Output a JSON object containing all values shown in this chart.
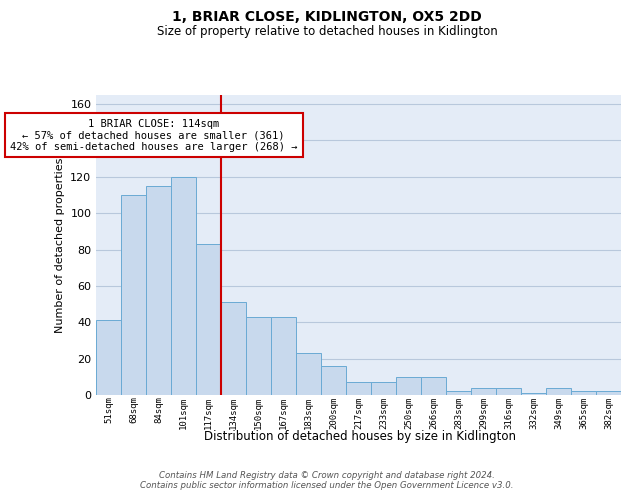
{
  "title": "1, BRIAR CLOSE, KIDLINGTON, OX5 2DD",
  "subtitle": "Size of property relative to detached houses in Kidlington",
  "xlabel": "Distribution of detached houses by size in Kidlington",
  "ylabel": "Number of detached properties",
  "categories": [
    "51sqm",
    "68sqm",
    "84sqm",
    "101sqm",
    "117sqm",
    "134sqm",
    "150sqm",
    "167sqm",
    "183sqm",
    "200sqm",
    "217sqm",
    "233sqm",
    "250sqm",
    "266sqm",
    "283sqm",
    "299sqm",
    "316sqm",
    "332sqm",
    "349sqm",
    "365sqm",
    "382sqm"
  ],
  "values": [
    41,
    110,
    115,
    120,
    83,
    51,
    43,
    43,
    23,
    16,
    7,
    7,
    10,
    10,
    2,
    4,
    4,
    1,
    4,
    2,
    2
  ],
  "bar_color": "#c8d9ed",
  "bar_edge_color": "#6aaad4",
  "grid_color": "#b8c8dc",
  "background_color": "#e4ecf7",
  "annotation_text": "1 BRIAR CLOSE: 114sqm\n← 57% of detached houses are smaller (361)\n42% of semi-detached houses are larger (268) →",
  "vline_position": 4.5,
  "vline_color": "#cc0000",
  "footer": "Contains HM Land Registry data © Crown copyright and database right 2024.\nContains public sector information licensed under the Open Government Licence v3.0.",
  "ylim": [
    0,
    165
  ],
  "annotation_box_color": "#ffffff",
  "annotation_box_edge_color": "#cc0000"
}
